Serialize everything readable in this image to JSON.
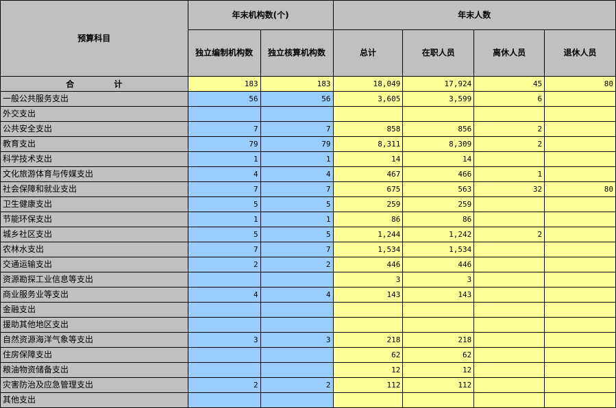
{
  "header": {
    "subject": "预算科目",
    "group_institutions": "年末机构数(个)",
    "group_people": "年末人数",
    "col_independent_staffing": "独立编制机构数",
    "col_independent_accounting": "独立核算机构数",
    "col_total": "总计",
    "col_active": "在职人员",
    "col_retired_lixiu": "离休人员",
    "col_retired_tuixiu": "退休人员"
  },
  "total_row": {
    "label_part1": "合",
    "label_part2": "计",
    "v": [
      "183",
      "183",
      "18,049",
      "17,924",
      "45",
      "80"
    ]
  },
  "rows": [
    {
      "label": "一般公共服务支出",
      "v": [
        "56",
        "56",
        "3,605",
        "3,599",
        "6",
        ""
      ]
    },
    {
      "label": "外交支出",
      "v": [
        "",
        "",
        "",
        "",
        "",
        ""
      ]
    },
    {
      "label": "公共安全支出",
      "v": [
        "7",
        "7",
        "858",
        "856",
        "2",
        ""
      ]
    },
    {
      "label": "教育支出",
      "v": [
        "79",
        "79",
        "8,311",
        "8,309",
        "2",
        ""
      ]
    },
    {
      "label": "科学技术支出",
      "v": [
        "1",
        "1",
        "14",
        "14",
        "",
        ""
      ]
    },
    {
      "label": "文化旅游体育与传媒支出",
      "v": [
        "4",
        "4",
        "467",
        "466",
        "1",
        ""
      ]
    },
    {
      "label": "社会保障和就业支出",
      "v": [
        "7",
        "7",
        "675",
        "563",
        "32",
        "80"
      ]
    },
    {
      "label": "卫生健康支出",
      "v": [
        "5",
        "5",
        "259",
        "259",
        "",
        ""
      ]
    },
    {
      "label": "节能环保支出",
      "v": [
        "1",
        "1",
        "86",
        "86",
        "",
        ""
      ]
    },
    {
      "label": "城乡社区支出",
      "v": [
        "5",
        "5",
        "1,244",
        "1,242",
        "2",
        ""
      ]
    },
    {
      "label": "农林水支出",
      "v": [
        "7",
        "7",
        "1,534",
        "1,534",
        "",
        ""
      ]
    },
    {
      "label": "交通运输支出",
      "v": [
        "2",
        "2",
        "446",
        "446",
        "",
        ""
      ]
    },
    {
      "label": "资源勘探工业信息等支出",
      "v": [
        "",
        "",
        "3",
        "3",
        "",
        ""
      ]
    },
    {
      "label": "商业服务业等支出",
      "v": [
        "4",
        "4",
        "143",
        "143",
        "",
        ""
      ]
    },
    {
      "label": "金融支出",
      "v": [
        "",
        "",
        "",
        "",
        "",
        ""
      ]
    },
    {
      "label": "援助其他地区支出",
      "v": [
        "",
        "",
        "",
        "",
        "",
        ""
      ]
    },
    {
      "label": "自然资源海洋气象等支出",
      "v": [
        "3",
        "3",
        "218",
        "218",
        "",
        ""
      ]
    },
    {
      "label": "住房保障支出",
      "v": [
        "",
        "",
        "62",
        "62",
        "",
        ""
      ]
    },
    {
      "label": "粮油物资储备支出",
      "v": [
        "",
        "",
        "12",
        "12",
        "",
        ""
      ]
    },
    {
      "label": "灾害防治及应急管理支出",
      "v": [
        "2",
        "2",
        "112",
        "112",
        "",
        ""
      ]
    },
    {
      "label": "其他支出",
      "v": [
        "",
        "",
        "",
        "",
        "",
        ""
      ]
    }
  ]
}
